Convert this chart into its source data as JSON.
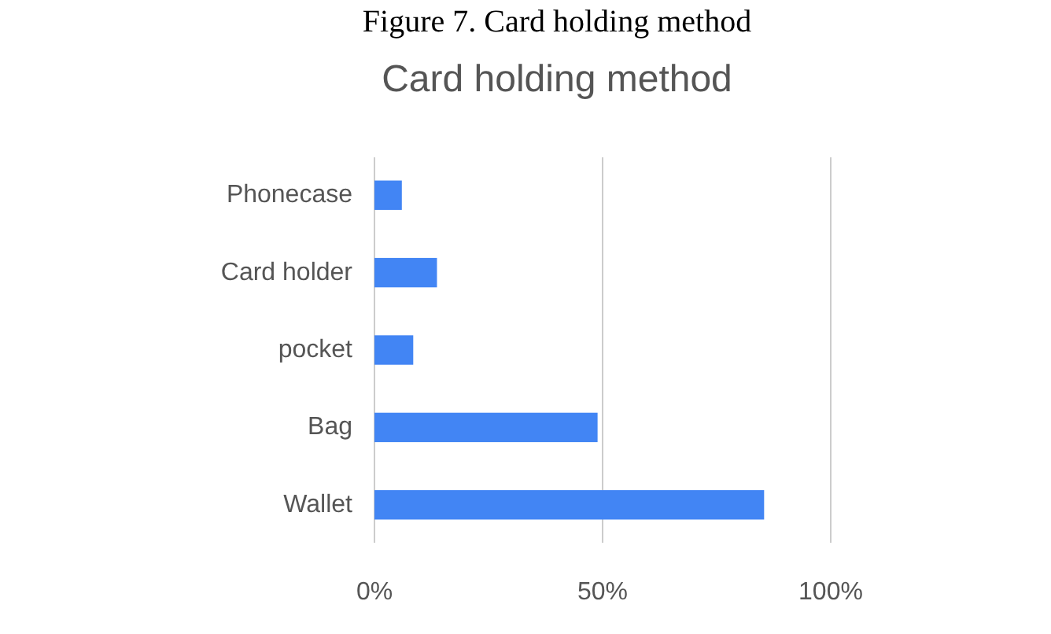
{
  "chart_data": {
    "type": "bar",
    "orientation": "horizontal",
    "title": "Card holding method",
    "annotations": [
      "Figure 7. Card holding method"
    ],
    "categories": [
      "Phonecase",
      "Card holder",
      "pocket",
      "Bag",
      "Wallet"
    ],
    "values": [
      6,
      13.7,
      8.5,
      48.9,
      85.4
    ],
    "color": "#4285f4",
    "xlim": [
      0,
      100
    ],
    "xticks": [
      {
        "value": 0,
        "label": "0%"
      },
      {
        "value": 50,
        "label": "50%"
      },
      {
        "value": 100,
        "label": "100%"
      }
    ],
    "grid": "x"
  }
}
